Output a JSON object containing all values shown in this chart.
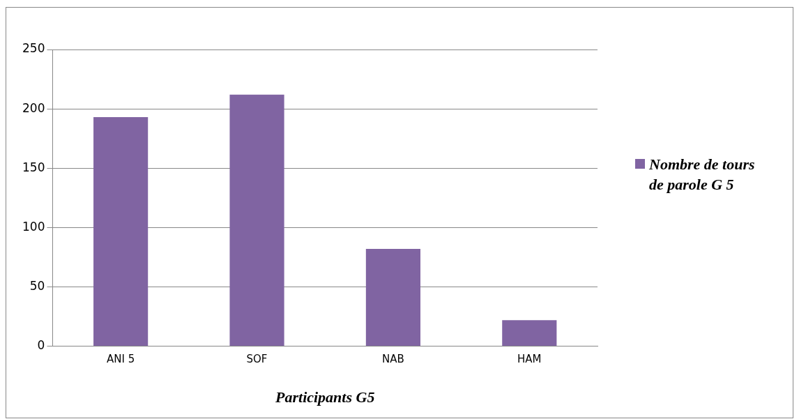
{
  "chart_data": {
    "type": "bar",
    "xlabel": "Participants G5",
    "categories": [
      "ANI 5",
      "SOF",
      "NAB",
      "HAM"
    ],
    "series": [
      {
        "name": "Nombre de tours de parole G 5",
        "color": "#8064a2",
        "values": [
          193,
          212,
          82,
          22
        ]
      }
    ],
    "ylim": [
      0,
      250
    ],
    "yticks": [
      0,
      50,
      100,
      150,
      200,
      250
    ],
    "grid": "y",
    "legend": "right"
  }
}
